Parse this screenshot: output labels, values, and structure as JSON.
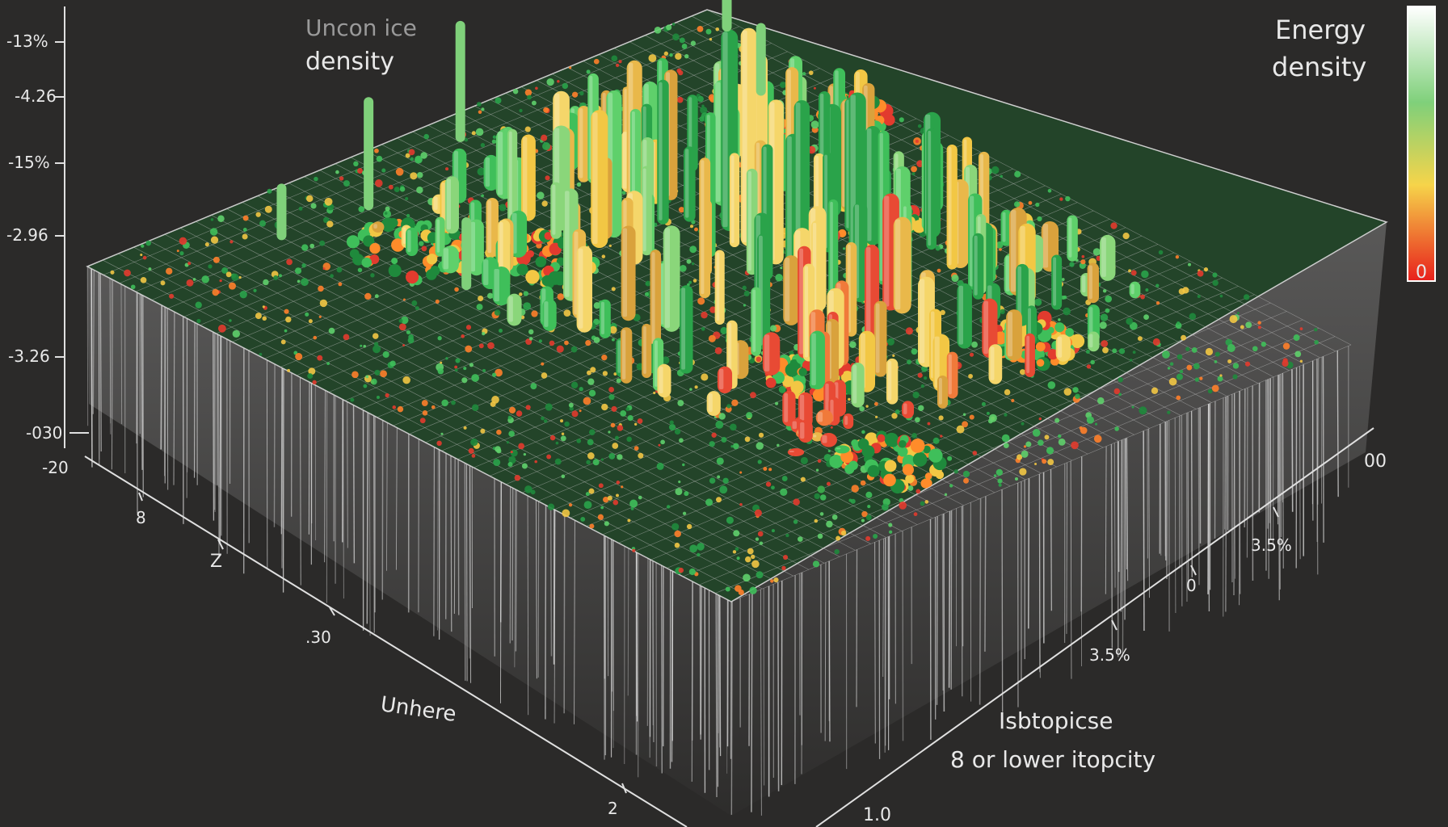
{
  "chart_data": {
    "type": "bar",
    "title_top_left": [
      "Uncon ice",
      "density"
    ],
    "colorbar": {
      "title": [
        "Energy",
        "density"
      ],
      "end_label": "0",
      "colors": [
        "#ffffff",
        "#7fd07a",
        "#f6d44a",
        "#e8201c"
      ]
    },
    "z_ticks": [
      "-13%",
      "-4.26",
      "-15%",
      "-2.96",
      "-3.26",
      "-030",
      "-20"
    ],
    "left_axis_ticks": [
      "8",
      "Z",
      ".30",
      "2"
    ],
    "left_axis_label": "Unhere",
    "right_axis_ticks": [
      "00",
      "3.5%",
      "0",
      "3.5%",
      "1.0"
    ],
    "right_axis_label": [
      "Isbtopicse",
      "8 or lower itopcity"
    ],
    "grid": true,
    "scale": "3d-surface",
    "colors": {
      "low": "#1f8a3c",
      "mid": "#f2c744",
      "high": "#e23b2e",
      "base": "#d9d9d9"
    }
  }
}
